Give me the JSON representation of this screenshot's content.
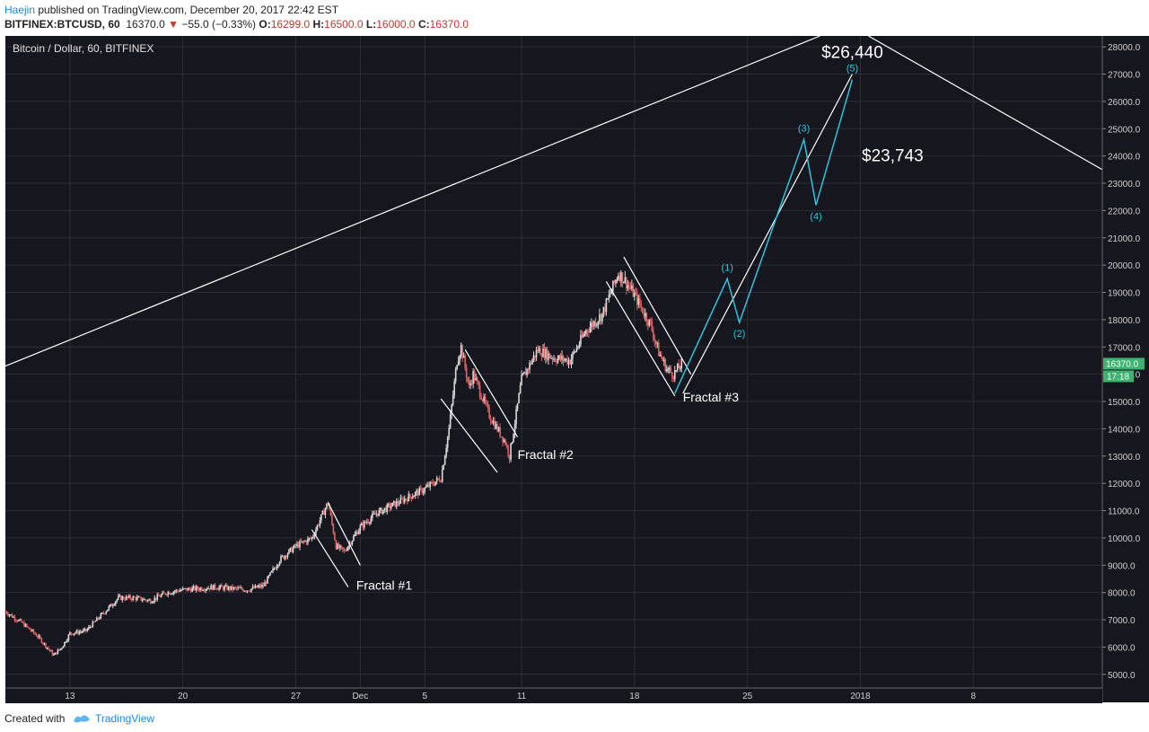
{
  "header": {
    "author": "Haejin",
    "published_text": " published on TradingView.com, December 20, 2017 22:42 EST",
    "symbol": "BITFINEX:BTCUSD, 60",
    "last": "16370.0",
    "change_arrow": "▼",
    "change": "−55.0 (−0.33%)",
    "o_label": "O:",
    "o_value": "16299.0",
    "h_label": "H:",
    "h_value": "16500.0",
    "l_label": "L:",
    "l_value": "16000.0",
    "c_label": "C:",
    "c_value": "16370.0"
  },
  "chart_data": {
    "type": "candlestick",
    "title": "Bitcoin / Dollar, 60, BITFINEX",
    "y_ticks": [
      5000,
      6000,
      7000,
      8000,
      9000,
      10000,
      11000,
      12000,
      13000,
      14000,
      15000,
      16000,
      17000,
      18000,
      19000,
      20000,
      21000,
      22000,
      23000,
      24000,
      25000,
      26000,
      27000,
      28000
    ],
    "y_tick_labels": [
      "5000.0",
      "6000.0",
      "7000.0",
      "8000.0",
      "9000.0",
      "10000.0",
      "11000.0",
      "12000.0",
      "13000.0",
      "14000.0",
      "15000.0",
      "16000.0",
      "17000.0",
      "18000.0",
      "19000.0",
      "20000.0",
      "21000.0",
      "22000.0",
      "23000.0",
      "24000.0",
      "25000.0",
      "26000.0",
      "27000.0",
      "28000.0"
    ],
    "ylim": [
      4500,
      28400
    ],
    "xlim": [
      "2017-11-09",
      "2018-01-16"
    ],
    "x_ticks": [
      {
        "date": "2017-11-13",
        "label": "13"
      },
      {
        "date": "2017-11-20",
        "label": "20"
      },
      {
        "date": "2017-11-27",
        "label": "27"
      },
      {
        "date": "2017-12-01",
        "label": "Dec"
      },
      {
        "date": "2017-12-05",
        "label": "5"
      },
      {
        "date": "2017-12-11",
        "label": "11"
      },
      {
        "date": "2017-12-18",
        "label": "18"
      },
      {
        "date": "2017-12-25",
        "label": "25"
      },
      {
        "date": "2018-01-01",
        "label": "2018"
      },
      {
        "date": "2018-01-08",
        "label": "8"
      }
    ],
    "price_path": [
      [
        "2017-11-09 00:00",
        7300
      ],
      [
        "2017-11-10 00:00",
        6900
      ],
      [
        "2017-11-11 00:00",
        6400
      ],
      [
        "2017-11-12 00:00",
        5700
      ],
      [
        "2017-11-12 12:00",
        6000
      ],
      [
        "2017-11-13 00:00",
        6500
      ],
      [
        "2017-11-14 00:00",
        6600
      ],
      [
        "2017-11-15 00:00",
        7200
      ],
      [
        "2017-11-16 00:00",
        7800
      ],
      [
        "2017-11-17 00:00",
        7800
      ],
      [
        "2017-11-18 00:00",
        7700
      ],
      [
        "2017-11-19 00:00",
        8000
      ],
      [
        "2017-11-20 00:00",
        8100
      ],
      [
        "2017-11-21 00:00",
        8150
      ],
      [
        "2017-11-22 00:00",
        8200
      ],
      [
        "2017-11-23 00:00",
        8150
      ],
      [
        "2017-11-24 00:00",
        8100
      ],
      [
        "2017-11-25 00:00",
        8250
      ],
      [
        "2017-11-26 00:00",
        9200
      ],
      [
        "2017-11-27 00:00",
        9700
      ],
      [
        "2017-11-28 00:00",
        10000
      ],
      [
        "2017-11-29 00:00",
        11300
      ],
      [
        "2017-11-29 12:00",
        9700
      ],
      [
        "2017-11-30 00:00",
        9500
      ],
      [
        "2017-12-01 00:00",
        10400
      ],
      [
        "2017-12-02 00:00",
        10900
      ],
      [
        "2017-12-03 00:00",
        11200
      ],
      [
        "2017-12-04 00:00",
        11500
      ],
      [
        "2017-12-05 00:00",
        11800
      ],
      [
        "2017-12-06 00:00",
        12200
      ],
      [
        "2017-12-06 12:00",
        14000
      ],
      [
        "2017-12-07 00:00",
        16500
      ],
      [
        "2017-12-07 06:00",
        17000
      ],
      [
        "2017-12-07 18:00",
        15500
      ],
      [
        "2017-12-08 00:00",
        16000
      ],
      [
        "2017-12-09 00:00",
        14500
      ],
      [
        "2017-12-10 00:00",
        13500
      ],
      [
        "2017-12-10 06:00",
        13000
      ],
      [
        "2017-12-11 00:00",
        15800
      ],
      [
        "2017-12-12 00:00",
        16900
      ],
      [
        "2017-12-13 00:00",
        16600
      ],
      [
        "2017-12-14 00:00",
        16500
      ],
      [
        "2017-12-15 00:00",
        17600
      ],
      [
        "2017-12-16 00:00",
        18200
      ],
      [
        "2017-12-17 00:00",
        19700
      ],
      [
        "2017-12-17 08:00",
        19500
      ],
      [
        "2017-12-18 00:00",
        18900
      ],
      [
        "2017-12-19 00:00",
        17800
      ],
      [
        "2017-12-19 12:00",
        16800
      ],
      [
        "2017-12-20 00:00",
        16200
      ],
      [
        "2017-12-20 10:00",
        16000
      ],
      [
        "2017-12-20 22:00",
        16370
      ]
    ],
    "last_price": 16370.0,
    "last_price_label": "16370.0",
    "countdown_label": "17:18",
    "trend_lines": [
      {
        "from": [
          "2017-11-09 00:00",
          16300
        ],
        "to": [
          "2017-12-29 12:00",
          28400
        ]
      },
      {
        "from": [
          "2018-01-01 12:00",
          28400
        ],
        "to": [
          "2018-01-16 00:00",
          23500
        ]
      },
      {
        "from": [
          "2017-12-21 00:00",
          15300
        ],
        "to": [
          "2017-12-31 12:00",
          27000
        ]
      }
    ],
    "fractal_channels": [
      {
        "label": "Fractal #1",
        "lines": [
          {
            "from": [
              "2017-11-29 00:00",
              11300
            ],
            "to": [
              "2017-12-01 00:00",
              9000
            ]
          },
          {
            "from": [
              "2017-11-28 00:00",
              10300
            ],
            "to": [
              "2017-11-30 06:00",
              8200
            ]
          }
        ],
        "label_at": [
          "2017-11-30 18:00",
          8100
        ]
      },
      {
        "label": "Fractal #2",
        "lines": [
          {
            "from": [
              "2017-12-07 12:00",
              16900
            ],
            "to": [
              "2017-12-10 18:00",
              13700
            ]
          },
          {
            "from": [
              "2017-12-06 00:00",
              15100
            ],
            "to": [
              "2017-12-09 12:00",
              12400
            ]
          }
        ],
        "label_at": [
          "2017-12-10 18:00",
          12900
        ]
      },
      {
        "label": "Fractal #3",
        "lines": [
          {
            "from": [
              "2017-12-17 08:00",
              20300
            ],
            "to": [
              "2017-12-21 12:00",
              16000
            ]
          },
          {
            "from": [
              "2017-12-16 06:00",
              19400
            ],
            "to": [
              "2017-12-20 12:00",
              15200
            ]
          }
        ],
        "label_at": [
          "2017-12-21 00:00",
          15000
        ]
      }
    ],
    "elliott_wave": {
      "color": "#2ec4e0",
      "points": [
        {
          "t": "2017-12-20 12:00",
          "y": 15300,
          "label": ""
        },
        {
          "t": "2017-12-23 18:00",
          "y": 19500,
          "label": "(1)"
        },
        {
          "t": "2017-12-24 12:00",
          "y": 17900,
          "label": "(2)"
        },
        {
          "t": "2017-12-28 12:00",
          "y": 24600,
          "label": "(3)"
        },
        {
          "t": "2017-12-29 06:00",
          "y": 22200,
          "label": "(4)"
        },
        {
          "t": "2017-12-31 12:00",
          "y": 26800,
          "label": "(5)"
        }
      ]
    },
    "annotations": [
      {
        "text": "$26,440",
        "at": [
          "2017-12-31 12:00",
          27600
        ]
      },
      {
        "text": "$23,743",
        "at": [
          "2018-01-03 00:00",
          23800
        ]
      }
    ],
    "colors": {
      "background": "#16161e",
      "up": "#d9d9d9",
      "down": "#e06262",
      "grid": "#2e2e38",
      "line": "#ffffff",
      "price_badge": "#3cb371"
    }
  },
  "footer": {
    "created": "Created with",
    "brand": "TradingView"
  }
}
